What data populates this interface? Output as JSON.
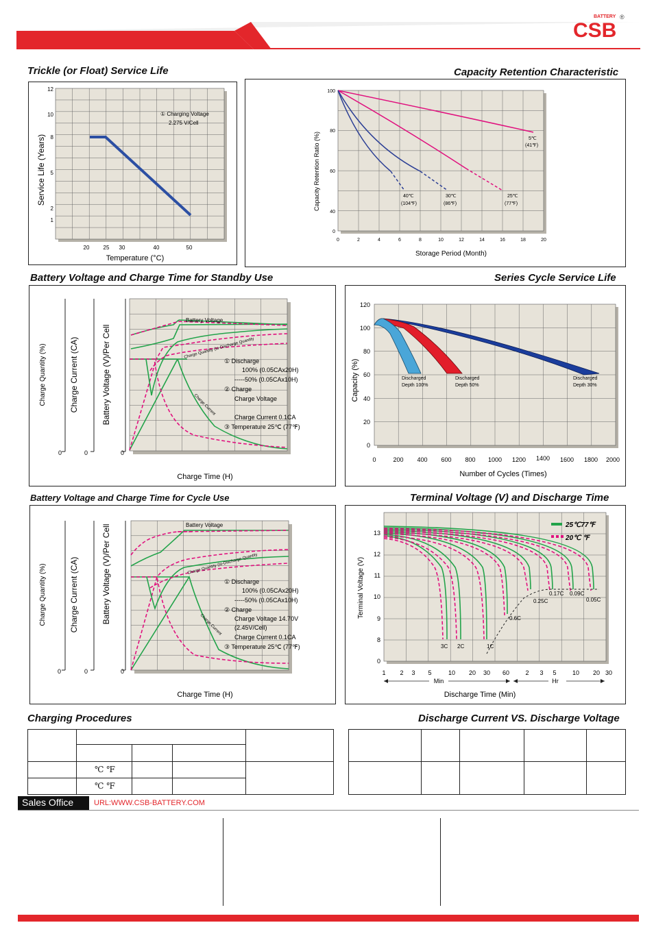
{
  "brand": {
    "logo_text": "CSB",
    "logo_sub": "BATTERY",
    "reg_mark": "®",
    "color": "#e3262b"
  },
  "sections": {
    "trickle_title": "Trickle (or Float) Service Life",
    "retention_title": "Capacity  Retention  Characteristic",
    "standby_title": "Battery Voltage and Charge Time for Standby Use",
    "cycle_life_title": "Series Cycle Service Life",
    "cycle_use_title": "Battery Voltage and Charge Time for Cycle Use",
    "terminal_title": "Terminal Voltage (V) and Discharge Time",
    "charging_title": "Charging Procedures",
    "discharge_title": "Discharge Current VS. Discharge Voltage"
  },
  "trickle": {
    "ylabel": "Service Life (Years)",
    "xlabel": "Temperature (°C)",
    "yticks": [
      "12",
      "10",
      "8",
      "5",
      "2",
      "1"
    ],
    "xticks": [
      "20",
      "25",
      "30",
      "40",
      "50"
    ],
    "note_line1": "① Charging Voltage",
    "note_line2": "2.275 V/Cell"
  },
  "retention": {
    "ylabel": "Capacity Retention Ratio (%)",
    "xlabel": "Storage Period (Month)",
    "yticks": [
      "100",
      "80",
      "60",
      "40",
      "0"
    ],
    "xticks": [
      "0",
      "2",
      "4",
      "6",
      "8",
      "10",
      "12",
      "14",
      "16",
      "18",
      "20"
    ],
    "labels": [
      {
        "c": "5℃",
        "f": "(41℉)"
      },
      {
        "c": "25℃",
        "f": "(77℉)"
      },
      {
        "c": "30℃",
        "f": "(86℉)"
      },
      {
        "c": "40℃",
        "f": "(104℉)"
      }
    ]
  },
  "standby": {
    "ylabel_q": "Charge Quantity (%)",
    "ylabel_i": "Charge Current (CA)",
    "ylabel_v": "Battery Voltage (V)/Per Cell",
    "xlabel": "Charge Time (H)",
    "zeros": [
      "0",
      "0",
      "0"
    ],
    "battery_voltage": "Battery Voltage",
    "charge_quantity": "Charge Quantity (to-Discharge Quantity",
    "charge_current": "Charge Current",
    "notes": [
      "① Discharge",
      "100% (0.05CAx20H)",
      "-----50% (0.05CAx10H)",
      "② Charge",
      "Charge Voltage",
      "",
      "Charge Current 0.1CA",
      "③ Temperature 25℃ (77℉)"
    ]
  },
  "cycle_use": {
    "notes": [
      "① Discharge",
      "100% (0.05CAx20H)",
      "-----50% (0.05CAx10H)",
      "② Charge",
      "Charge Voltage 14.70V",
      "(2.45V/Cell)",
      "Charge Current 0.1CA",
      "③ Temperature 25℃ (77℉)"
    ]
  },
  "cycle_life": {
    "ylabel": "Capacity (%)",
    "xlabel": "Number of Cycles (Times)",
    "yticks": [
      "120",
      "100",
      "80",
      "60",
      "40",
      "20",
      "0"
    ],
    "xticks": [
      "0",
      "200",
      "400",
      "600",
      "800",
      "1000",
      "1200",
      "1400",
      "1600",
      "1800",
      "2000"
    ],
    "depths": [
      {
        "l1": "Discharged",
        "l2": "Depth 100%",
        "color": "#4aa6d8"
      },
      {
        "l1": "Discharged",
        "l2": "Depth 50%",
        "color": "#e21d2a"
      },
      {
        "l1": "Discharged",
        "l2": "Depth 30%",
        "color": "#1b3d9c"
      }
    ]
  },
  "terminal": {
    "ylabel": "Terminal Voltage (V)",
    "xlabel": "Discharge Time (Min)",
    "yticks": [
      "13",
      "12",
      "11",
      "10",
      "9",
      "8",
      "0"
    ],
    "xticks_min": [
      "1",
      "2",
      "3",
      "5",
      "10",
      "20",
      "30",
      "60"
    ],
    "xticks_hr": [
      "2",
      "3",
      "5",
      "10",
      "20",
      "30"
    ],
    "min_label": "Min",
    "hr_label": "Hr",
    "legend_25": "25℃77℉",
    "legend_20": "20℃  ℉",
    "rates": [
      "3C",
      "2C",
      "1C",
      "0.6C",
      "0.25C",
      "0.17C",
      "0.09C",
      "0.05C"
    ]
  },
  "charging": {
    "row1_c": "℃  ℉",
    "row2_c": "℃  ℉"
  },
  "footer": {
    "sales_office": "Sales Office",
    "url": "URL:WWW.CSB-BATTERY.COM"
  }
}
